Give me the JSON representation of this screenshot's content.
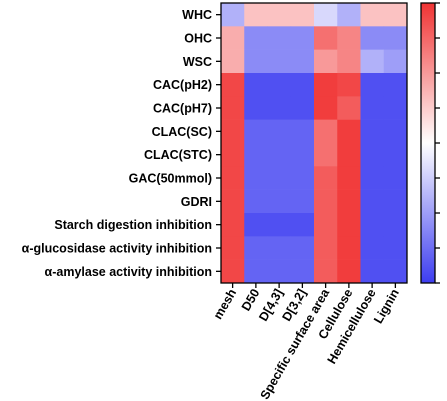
{
  "chart_data": {
    "type": "heatmap",
    "title": "",
    "xlabel": "",
    "ylabel": "",
    "rows": [
      "WHC",
      "OHC",
      "WSC",
      "CAC(pH2)",
      "CAC(pH7)",
      "CLAC(SC)",
      "CLAC(STC)",
      "GAC(50mmol)",
      "GDRI",
      "Starch digestion inhibition",
      "α-glucosidase activity inhibition",
      "α-amylase activity inhibition"
    ],
    "columns": [
      "mesh",
      "D50",
      "D[4,3]",
      "D[3,2]",
      "Specific surface area",
      "Cellulose",
      "Hemicellulose",
      "Lignin"
    ],
    "values": [
      [
        -0.4,
        0.3,
        0.3,
        0.3,
        -0.2,
        -0.4,
        0.3,
        0.3
      ],
      [
        0.4,
        -0.6,
        -0.6,
        -0.6,
        0.7,
        0.6,
        -0.6,
        -0.6
      ],
      [
        0.4,
        -0.6,
        -0.6,
        -0.6,
        0.5,
        0.6,
        -0.4,
        -0.5
      ],
      [
        0.9,
        -0.9,
        -0.9,
        -0.9,
        0.95,
        0.9,
        -0.9,
        -0.9
      ],
      [
        0.9,
        -0.9,
        -0.9,
        -0.9,
        0.95,
        0.8,
        -0.9,
        -0.9
      ],
      [
        0.9,
        -0.8,
        -0.8,
        -0.8,
        0.7,
        0.95,
        -0.9,
        -0.9
      ],
      [
        0.9,
        -0.8,
        -0.8,
        -0.8,
        0.7,
        0.95,
        -0.9,
        -0.9
      ],
      [
        0.9,
        -0.8,
        -0.8,
        -0.8,
        0.8,
        0.95,
        -0.9,
        -0.9
      ],
      [
        0.9,
        -0.8,
        -0.8,
        -0.8,
        0.8,
        0.95,
        -0.9,
        -0.9
      ],
      [
        0.9,
        -0.9,
        -0.9,
        -0.9,
        0.8,
        0.95,
        -0.9,
        -0.9
      ],
      [
        0.9,
        -0.8,
        -0.8,
        -0.8,
        0.8,
        0.95,
        -0.9,
        -0.9
      ],
      [
        0.9,
        -0.8,
        -0.8,
        -0.8,
        0.8,
        0.95,
        -0.9,
        -0.9
      ]
    ],
    "color_scale": {
      "min": -1,
      "max": 1,
      "low_color": "#3d3df0",
      "mid_color": "#ffffff",
      "high_color": "#f03333"
    },
    "colorbar": {
      "position": "right",
      "tick_labels": []
    },
    "grid": false
  }
}
